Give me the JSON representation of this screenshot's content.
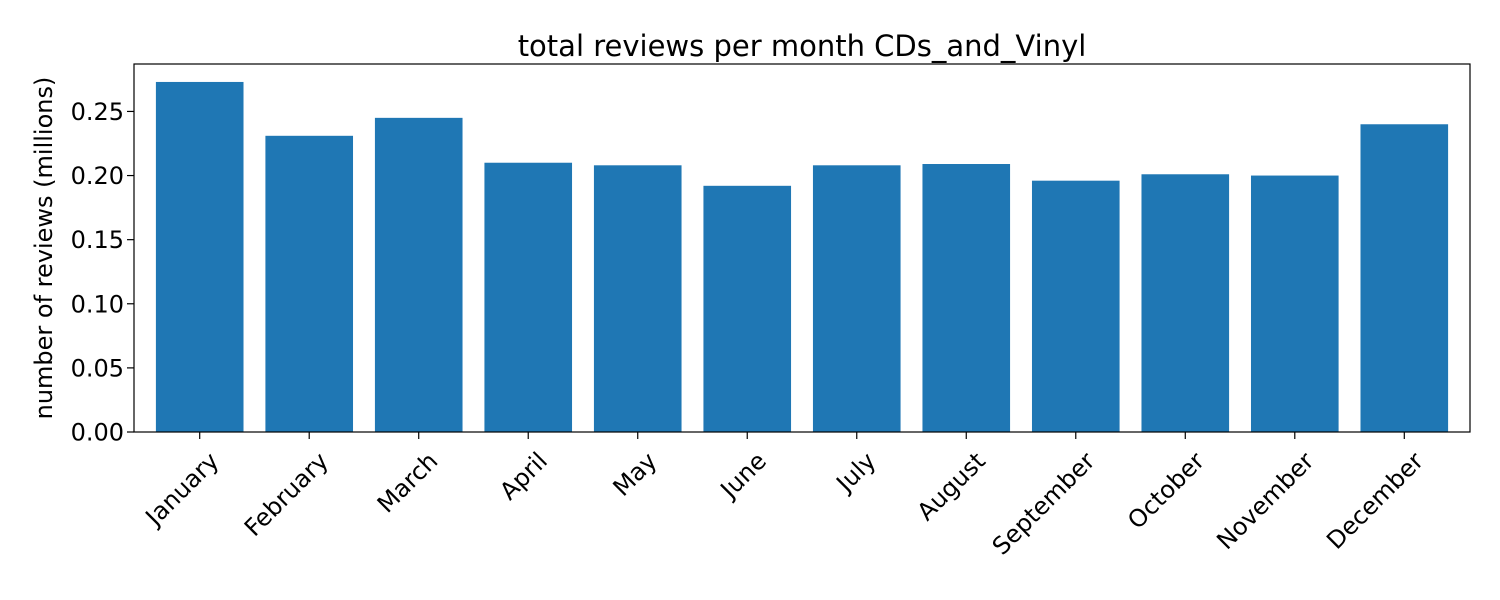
{
  "chart_data": {
    "type": "bar",
    "title": "total reviews per month CDs_and_Vinyl",
    "xlabel": "",
    "ylabel": "number of reviews (millions)",
    "categories": [
      "January",
      "February",
      "March",
      "April",
      "May",
      "June",
      "July",
      "August",
      "September",
      "October",
      "November",
      "December"
    ],
    "values": [
      0.273,
      0.231,
      0.245,
      0.21,
      0.208,
      0.192,
      0.208,
      0.209,
      0.196,
      0.201,
      0.2,
      0.24
    ],
    "ylim": [
      0,
      0.287
    ],
    "yticks": [
      0.0,
      0.05,
      0.1,
      0.15,
      0.2,
      0.25
    ],
    "ytick_labels": [
      "0.00",
      "0.05",
      "0.10",
      "0.15",
      "0.20",
      "0.25"
    ],
    "bar_color": "#1f77b4",
    "grid": false,
    "legend": "none"
  }
}
